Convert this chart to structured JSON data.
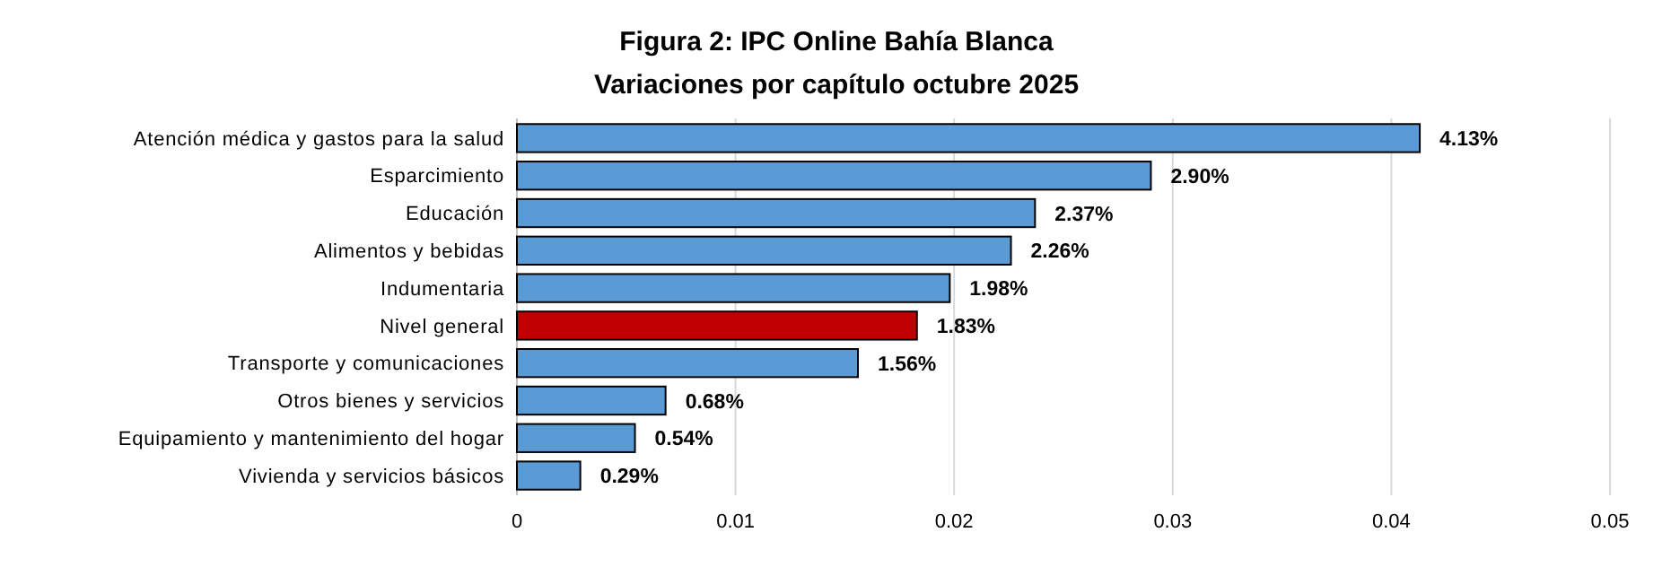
{
  "chart_data": {
    "type": "bar",
    "orientation": "horizontal",
    "title": "Figura 2: IPC Online Bahía Blanca",
    "subtitle": "Variaciones por capítulo octubre 2025",
    "categories": [
      "Atención médica y gastos para la salud",
      "Esparcimiento",
      "Educación",
      "Alimentos y bebidas",
      "Indumentaria",
      "Nivel general",
      "Transporte y comunicaciones",
      "Otros bienes y servicios",
      "Equipamiento y mantenimiento del hogar",
      "Vivienda y servicios básicos"
    ],
    "values": [
      0.0413,
      0.029,
      0.0237,
      0.0226,
      0.0198,
      0.0183,
      0.0156,
      0.0068,
      0.0054,
      0.0029
    ],
    "value_labels": [
      "4.13%",
      "2.90%",
      "2.37%",
      "2.26%",
      "1.98%",
      "1.83%",
      "1.56%",
      "0.68%",
      "0.54%",
      "0.29%"
    ],
    "colors": [
      "#5b9bd5",
      "#5b9bd5",
      "#5b9bd5",
      "#5b9bd5",
      "#5b9bd5",
      "#c00000",
      "#5b9bd5",
      "#5b9bd5",
      "#5b9bd5",
      "#5b9bd5"
    ],
    "xlim": [
      0,
      0.05
    ],
    "xticks": [
      0,
      0.01,
      0.02,
      0.03,
      0.04,
      0.05
    ],
    "grid": "x"
  }
}
